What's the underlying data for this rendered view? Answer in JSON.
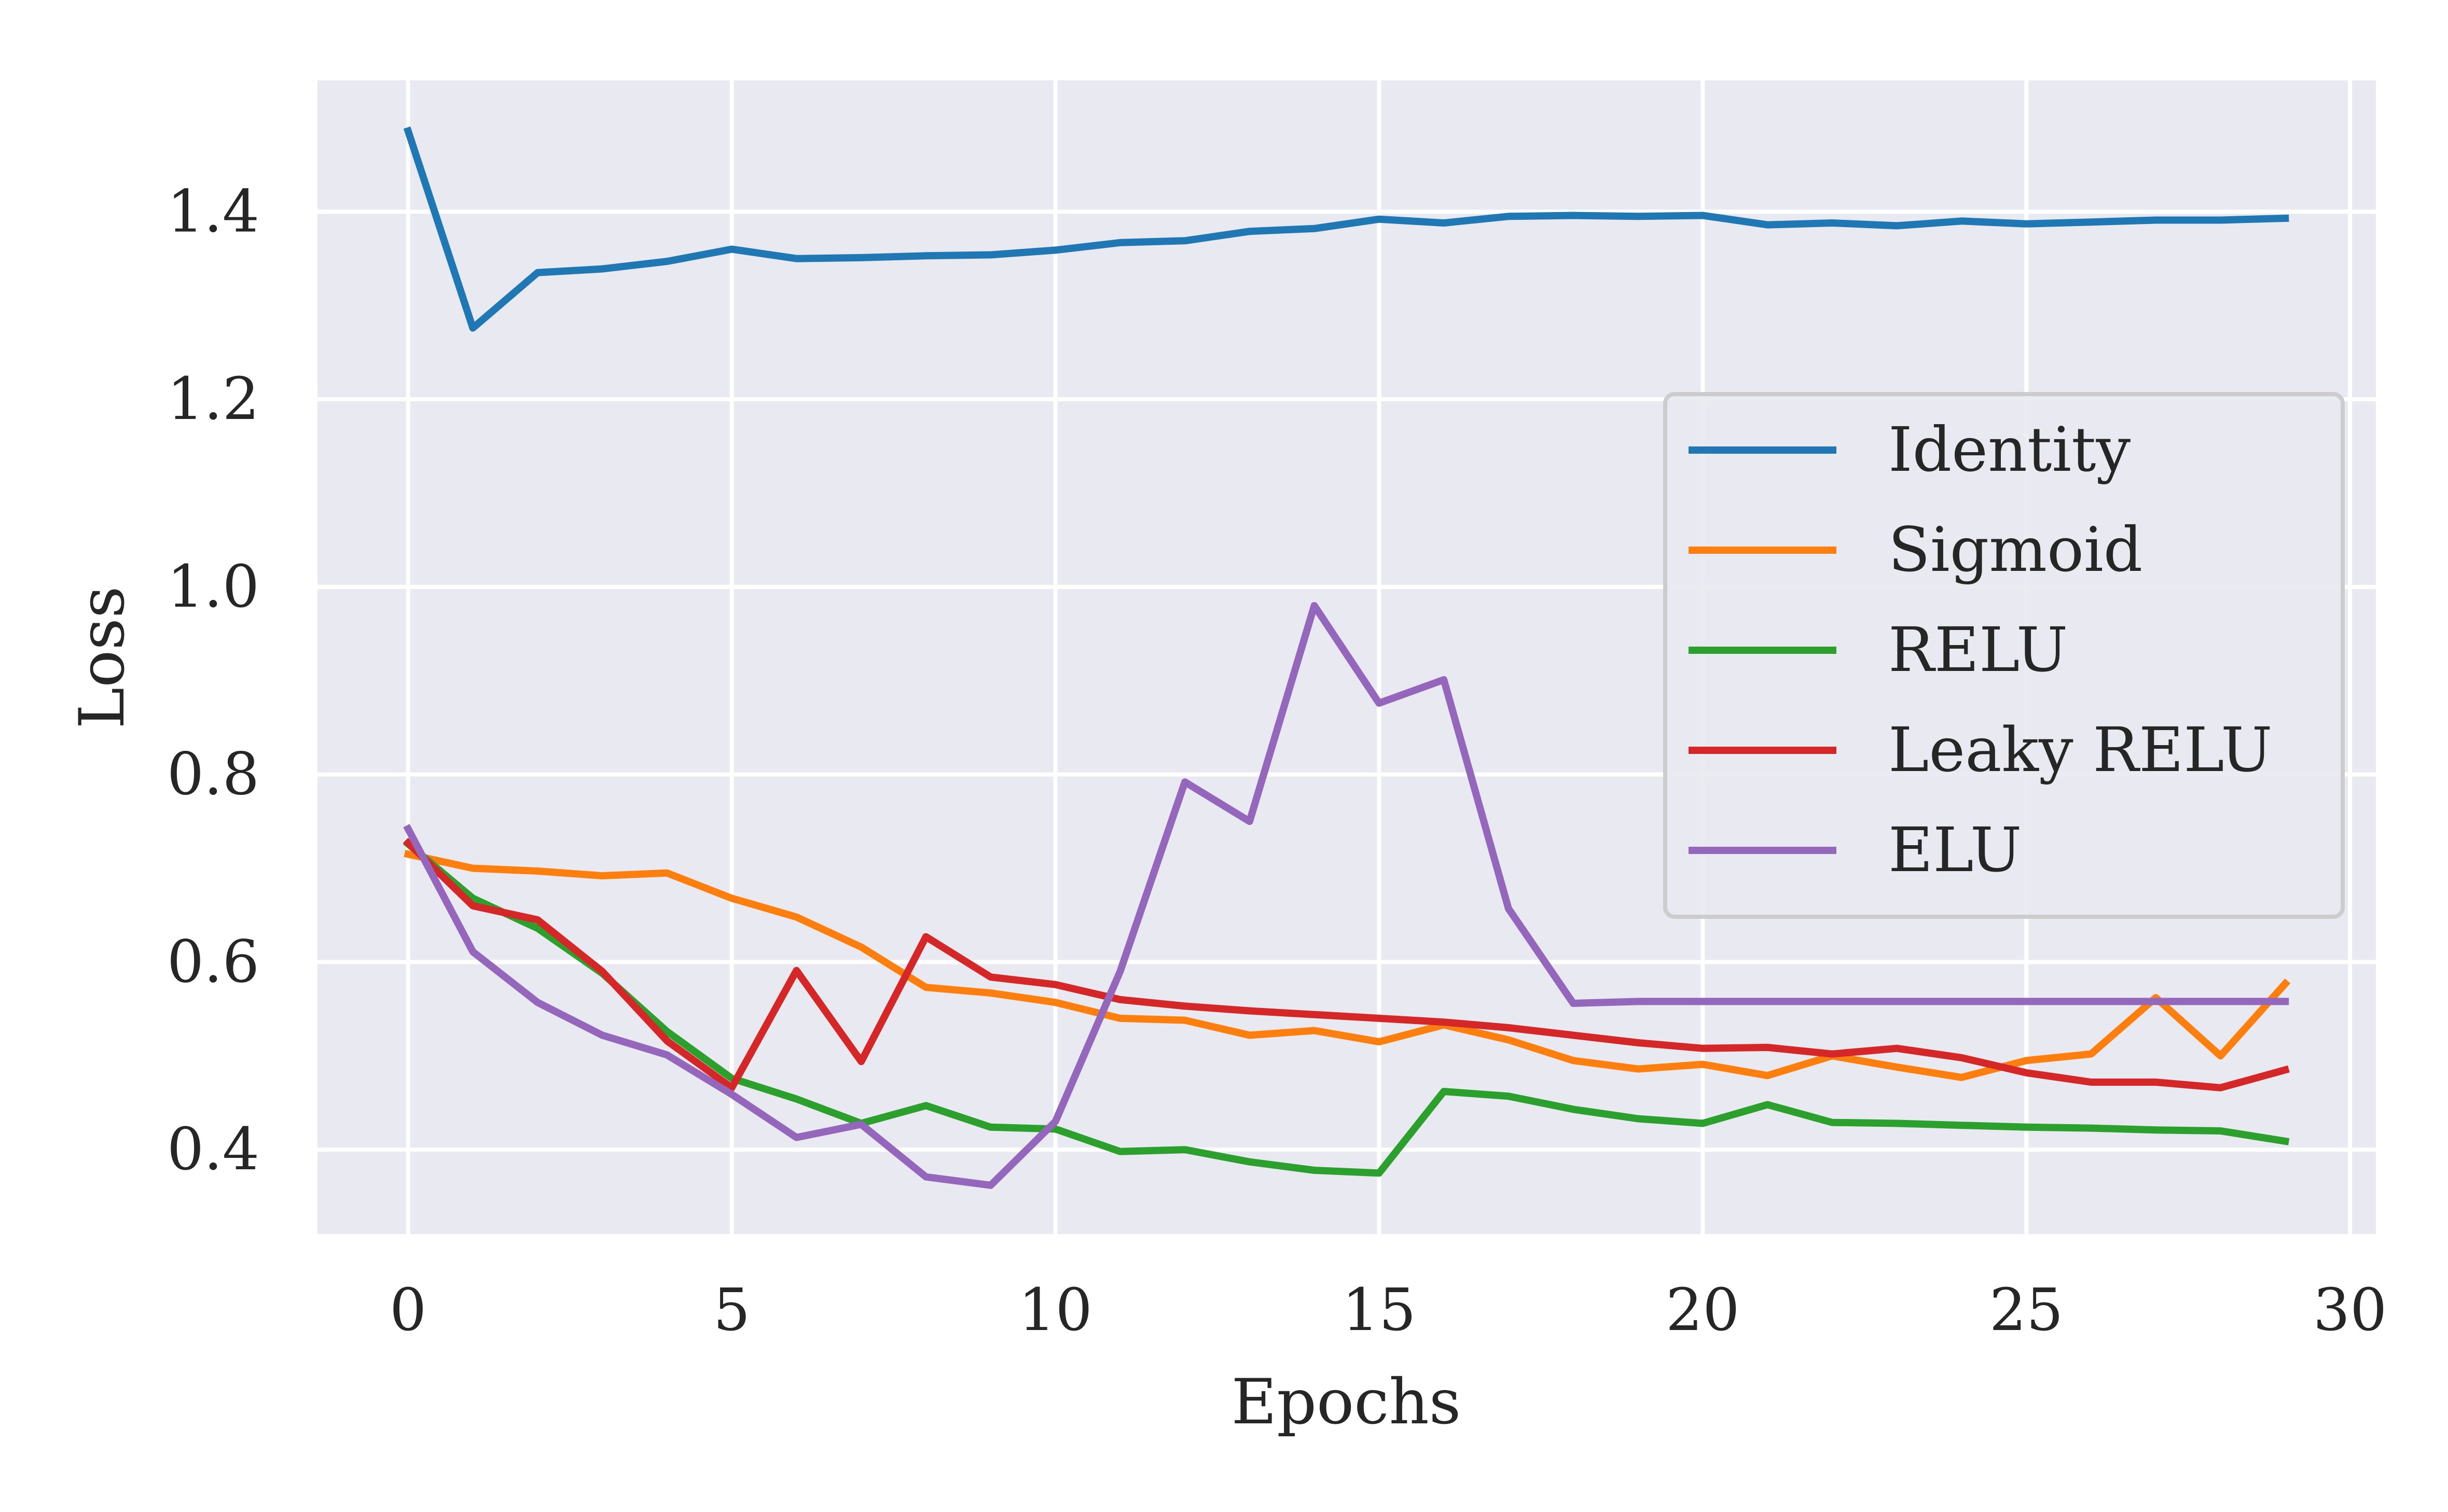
{
  "chart_data": {
    "type": "line",
    "title": "",
    "xlabel": "Epochs",
    "ylabel": "Loss",
    "xlim": [
      -1.4,
      30.4
    ],
    "ylim": [
      0.31,
      1.54
    ],
    "xticks": [
      0,
      5,
      10,
      15,
      20,
      25,
      30
    ],
    "xtick_labels": [
      "0",
      "5",
      "10",
      "15",
      "20",
      "25",
      "30"
    ],
    "yticks": [
      0.4,
      0.6,
      0.8,
      1.0,
      1.2,
      1.4
    ],
    "ytick_labels": [
      "0.4",
      "0.6",
      "0.8",
      "1.0",
      "1.2",
      "1.4"
    ],
    "grid": true,
    "background": "#e9e9f1",
    "legend_position": "center-right",
    "x": [
      0,
      1,
      2,
      3,
      4,
      5,
      6,
      7,
      8,
      9,
      10,
      11,
      12,
      13,
      14,
      15,
      16,
      17,
      18,
      19,
      20,
      21,
      22,
      23,
      24,
      25,
      26,
      27,
      28,
      29
    ],
    "series": [
      {
        "name": "Identity",
        "color": "#1f77b4",
        "values": [
          1.486,
          1.276,
          1.335,
          1.339,
          1.347,
          1.36,
          1.35,
          1.351,
          1.353,
          1.354,
          1.359,
          1.367,
          1.369,
          1.379,
          1.382,
          1.392,
          1.388,
          1.395,
          1.396,
          1.395,
          1.396,
          1.386,
          1.388,
          1.385,
          1.39,
          1.387,
          1.389,
          1.391,
          1.391,
          1.393
        ]
      },
      {
        "name": "Sigmoid",
        "color": "#ff7f0e",
        "values": [
          0.715,
          0.7,
          0.697,
          0.692,
          0.695,
          0.668,
          0.648,
          0.616,
          0.573,
          0.567,
          0.557,
          0.54,
          0.538,
          0.522,
          0.527,
          0.515,
          0.533,
          0.517,
          0.495,
          0.486,
          0.491,
          0.479,
          0.5,
          0.488,
          0.477,
          0.495,
          0.502,
          0.562,
          0.5,
          0.577
        ]
      },
      {
        "name": "RELU",
        "color": "#2ca02c",
        "values": [
          0.726,
          0.668,
          0.636,
          0.588,
          0.526,
          0.476,
          0.454,
          0.428,
          0.447,
          0.424,
          0.422,
          0.398,
          0.4,
          0.387,
          0.378,
          0.375,
          0.462,
          0.457,
          0.443,
          0.433,
          0.428,
          0.448,
          0.429,
          0.428,
          0.426,
          0.424,
          0.423,
          0.421,
          0.42,
          0.409
        ]
      },
      {
        "name": "Leaky RELU",
        "color": "#d62728",
        "values": [
          0.727,
          0.66,
          0.645,
          0.59,
          0.516,
          0.466,
          0.591,
          0.494,
          0.627,
          0.584,
          0.576,
          0.56,
          0.553,
          0.548,
          0.544,
          0.54,
          0.536,
          0.53,
          0.522,
          0.514,
          0.508,
          0.509,
          0.502,
          0.508,
          0.498,
          0.482,
          0.472,
          0.472,
          0.466,
          0.485
        ]
      },
      {
        "name": "ELU",
        "color": "#9467bd",
        "values": [
          0.742,
          0.611,
          0.557,
          0.522,
          0.501,
          0.459,
          0.413,
          0.427,
          0.371,
          0.362,
          0.43,
          0.59,
          0.792,
          0.75,
          0.98,
          0.876,
          0.901,
          0.657,
          0.556,
          0.558,
          0.558,
          0.558,
          0.558,
          0.558,
          0.558,
          0.558,
          0.558,
          0.558,
          0.558,
          0.558
        ]
      }
    ]
  }
}
